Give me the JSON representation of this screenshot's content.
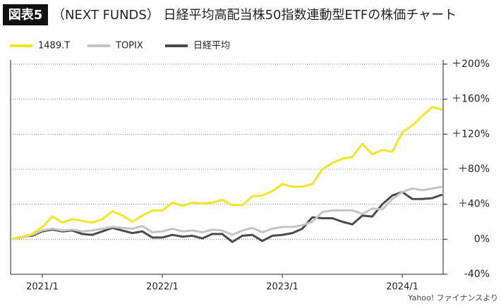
{
  "chart_data": {
    "type": "line",
    "figure_label": "図表5",
    "title": "（NEXT FUNDS） 日経平均高配当株50指数連動型ETFの株価チャート",
    "source": "Yahoo! ファイナンスより",
    "categories": [
      null,
      null,
      null,
      "2021/1",
      null,
      null,
      null,
      null,
      null,
      null,
      null,
      null,
      null,
      null,
      null,
      "2022/1",
      null,
      null,
      null,
      null,
      null,
      null,
      null,
      null,
      null,
      null,
      null,
      "2023/1",
      null,
      null,
      null,
      null,
      null,
      null,
      null,
      null,
      null,
      null,
      null,
      "2024/1",
      null,
      null,
      null,
      null
    ],
    "series": [
      {
        "name": "1489.T",
        "color": "#f2e52a",
        "values": [
          0,
          3,
          6,
          14,
          26,
          19,
          23,
          21,
          19,
          23,
          32,
          27,
          20,
          27,
          33,
          33,
          42,
          38,
          42,
          41,
          42,
          45,
          39,
          39,
          49,
          50,
          55,
          63,
          60,
          60,
          63,
          80,
          87,
          92,
          94,
          109,
          97,
          102,
          100,
          122,
          130,
          141,
          151,
          148
        ]
      },
      {
        "name": "TOPIX",
        "color": "#c4c4c4",
        "values": [
          0,
          2,
          5,
          10,
          12,
          10,
          11,
          9,
          10,
          12,
          14,
          13,
          12,
          15,
          8,
          9,
          12,
          9,
          10,
          8,
          11,
          10,
          5,
          10,
          13,
          8,
          12,
          14,
          14,
          16,
          20,
          31,
          33,
          33,
          33,
          29,
          35,
          34,
          46,
          54,
          58,
          56,
          58,
          60
        ]
      },
      {
        "name": "日経平均",
        "color": "#4a4a4a",
        "values": [
          0,
          3,
          4,
          9,
          11,
          9,
          10,
          6,
          5,
          9,
          13,
          10,
          7,
          9,
          2,
          2,
          5,
          3,
          4,
          1,
          6,
          6,
          -3,
          4,
          5,
          -2,
          4,
          5,
          7,
          12,
          25,
          24,
          24,
          20,
          17,
          27,
          26,
          40,
          50,
          54,
          46,
          46,
          47,
          51
        ]
      }
    ],
    "ylim": [
      -40,
      200
    ],
    "yticks": [
      {
        "value": -40,
        "label": "-40%"
      },
      {
        "value": 0,
        "label": "0%"
      },
      {
        "value": 40,
        "label": "＋40%"
      },
      {
        "value": 80,
        "label": "＋80%"
      },
      {
        "value": 120,
        "label": "＋120%"
      },
      {
        "value": 160,
        "label": "＋160%"
      },
      {
        "value": 200,
        "label": "＋200%"
      }
    ],
    "grid": true
  }
}
